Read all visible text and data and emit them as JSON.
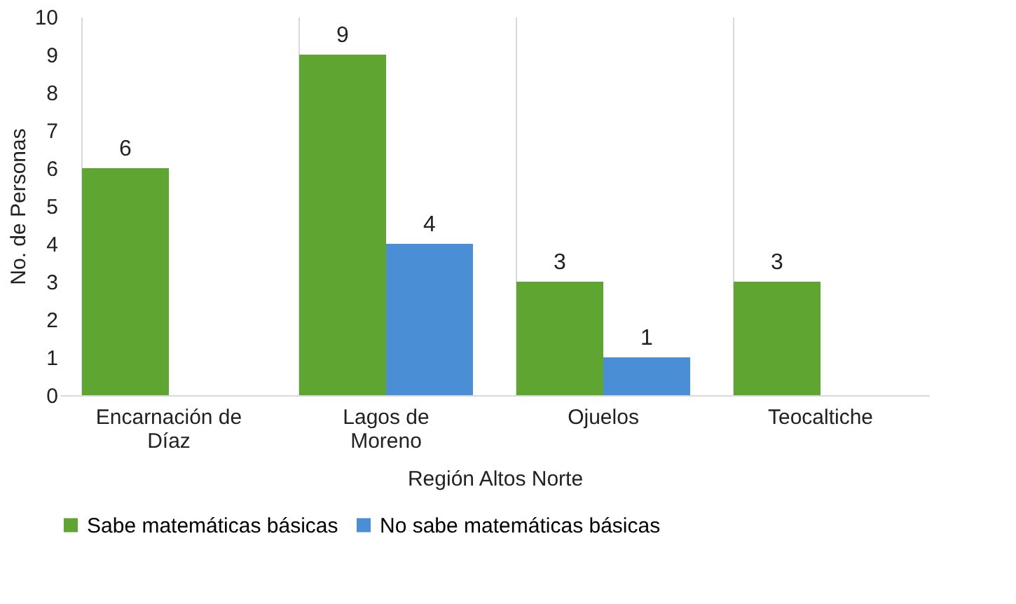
{
  "chart_data": {
    "type": "bar",
    "xlabel": "Región Altos Norte",
    "ylabel": "No. de Personas",
    "categories": [
      "Encarnación de Díaz",
      "Lagos de Moreno",
      "Ojuelos",
      "Teocaltiche"
    ],
    "series": [
      {
        "name": "Sabe matemáticas básicas",
        "color": "#5fa531",
        "values": [
          6,
          9,
          3,
          3
        ],
        "value_labels": [
          "6",
          "9",
          "3",
          "3"
        ]
      },
      {
        "name": "No sabe matemáticas básicas",
        "color": "#4a8fd6",
        "values": [
          0,
          4,
          1,
          0
        ],
        "value_labels": [
          null,
          "4",
          "1",
          null
        ]
      }
    ],
    "ylim": [
      0,
      10
    ],
    "yticks": [
      0,
      1,
      2,
      3,
      4,
      5,
      6,
      7,
      8,
      9,
      10
    ],
    "grid": "x",
    "legend": "bottom"
  }
}
